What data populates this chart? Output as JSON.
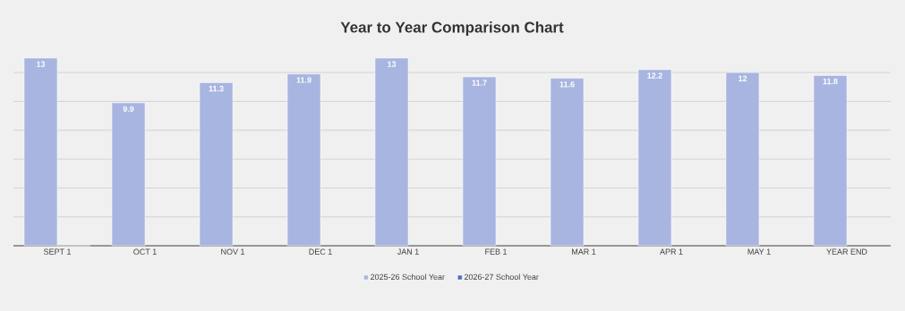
{
  "chart_data": {
    "type": "bar",
    "title": "Year to Year Comparison Chart",
    "categories": [
      "SEPT 1",
      "OCT 1",
      "NOV 1",
      "DEC 1",
      "JAN 1",
      "FEB 1",
      "MAR 1",
      "APR 1",
      "MAY 1",
      "YEAR END"
    ],
    "series": [
      {
        "name": "2025-26 School Year",
        "color": "#a8b5e0",
        "values": [
          13,
          9.9,
          11.3,
          11.9,
          13,
          11.7,
          11.6,
          12.2,
          12,
          11.8
        ]
      },
      {
        "name": "2026-27 School Year",
        "color": "#4f6cc4",
        "values": [
          null,
          null,
          null,
          null,
          null,
          null,
          null,
          null,
          null,
          null
        ]
      }
    ],
    "tick_labels": "x",
    "grid": "y",
    "legend": "bottom",
    "data_labels": true
  }
}
